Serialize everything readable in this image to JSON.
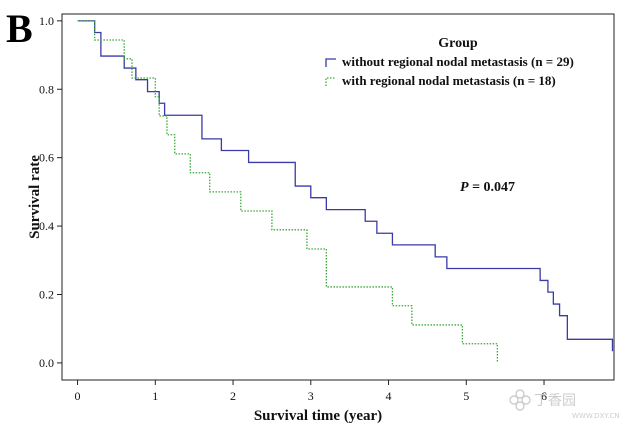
{
  "panel_label": "B",
  "chart_data": {
    "type": "line",
    "subtype": "kaplan-meier-step",
    "title": "",
    "xlabel": "Survival time (year)",
    "ylabel": "Survival rate",
    "xlim": [
      -0.2,
      6.9
    ],
    "ylim": [
      -0.05,
      1.02
    ],
    "xticks": [
      "0",
      "1",
      "2",
      "3",
      "4",
      "5",
      "6"
    ],
    "yticks": [
      "0.0",
      "0.2",
      "0.4",
      "0.6",
      "0.8",
      "1.0"
    ],
    "grid": false,
    "legend": {
      "title": "Group",
      "placement": "top-right",
      "entries": [
        "without regional nodal metastasis (n = 29)",
        "with regional nodal metastasis (n = 18)"
      ]
    },
    "annotation": {
      "p_label": "P",
      "p_value": "= 0.047"
    },
    "series": [
      {
        "name": "without regional nodal metastasis (n = 29)",
        "color": "#3a3aa8",
        "dash": "solid",
        "times": [
          0,
          0.22,
          0.3,
          0.6,
          0.75,
          0.9,
          1.05,
          1.12,
          1.2,
          1.6,
          1.85,
          2.2,
          2.8,
          3.0,
          3.2,
          3.7,
          3.85,
          4.05,
          4.6,
          4.75,
          5.05,
          5.95,
          6.05,
          6.12,
          6.2,
          6.3,
          6.88
        ],
        "survival": [
          1.0,
          0.966,
          0.897,
          0.862,
          0.828,
          0.793,
          0.759,
          0.724,
          0.724,
          0.655,
          0.621,
          0.586,
          0.517,
          0.483,
          0.448,
          0.414,
          0.379,
          0.345,
          0.31,
          0.276,
          0.276,
          0.241,
          0.207,
          0.172,
          0.138,
          0.069,
          0.034
        ]
      },
      {
        "name": "with regional nodal metastasis (n = 18)",
        "color": "#3aa83a",
        "dash": "dotted",
        "times": [
          0,
          0.22,
          0.6,
          0.7,
          0.95,
          1.0,
          1.05,
          1.15,
          1.25,
          1.45,
          1.7,
          2.1,
          2.5,
          2.95,
          3.2,
          4.05,
          4.3,
          4.95,
          5.4
        ],
        "survival": [
          1.0,
          0.944,
          0.889,
          0.833,
          0.833,
          0.778,
          0.722,
          0.667,
          0.611,
          0.556,
          0.5,
          0.444,
          0.389,
          0.333,
          0.222,
          0.167,
          0.111,
          0.056,
          0.0
        ]
      }
    ]
  },
  "watermark": {
    "text": "丁香园",
    "subtext": "WWW.DXY.CN",
    "icon": "clover-icon"
  }
}
